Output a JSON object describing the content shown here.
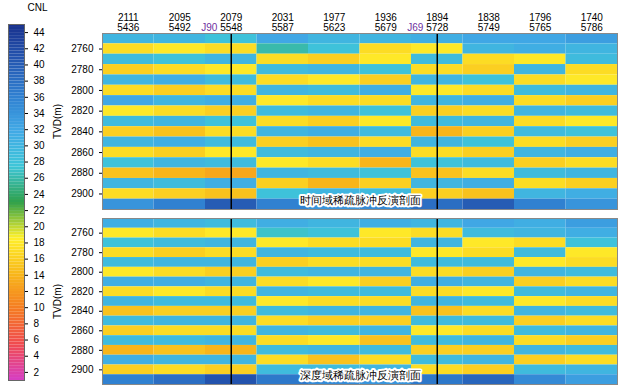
{
  "chart_data": {
    "type": "heatmap",
    "x_categories": [
      "2111\n5436",
      "2095\n5492",
      "2079\n5548",
      "2031\n5587",
      "1977\n5623",
      "1936\n5679",
      "1894\n5728",
      "1838\n5749",
      "1796\n5765",
      "1740\n5786"
    ],
    "ylabel": "TVD(m)",
    "ylim": [
      2745,
      2915
    ],
    "yticks": [
      2760,
      2780,
      2800,
      2820,
      2840,
      2860,
      2880,
      2900
    ],
    "y_edges": [
      2745,
      2755,
      2765,
      2775,
      2785,
      2795,
      2805,
      2815,
      2825,
      2835,
      2845,
      2855,
      2865,
      2875,
      2885,
      2895,
      2905,
      2915
    ],
    "color_bar": {
      "label": "CNL",
      "range": [
        1,
        45
      ],
      "ticks": [
        2,
        4,
        6,
        8,
        10,
        12,
        14,
        16,
        18,
        20,
        22,
        24,
        26,
        28,
        30,
        32,
        34,
        36,
        38,
        40,
        42,
        44
      ],
      "colors": [
        "#d63fc4",
        "#f04a50",
        "#f57b22",
        "#f8b81a",
        "#fff02a",
        "#2ea04a",
        "#3ec6d8",
        "#41a9e6",
        "#2f7fd0",
        "#2456b0",
        "#18308c"
      ]
    },
    "wells": [
      {
        "name": "J90",
        "x": "2079\n5548",
        "color": "#7030a0"
      },
      {
        "name": "J69",
        "x": "1894\n5728",
        "color": "#7030a0"
      }
    ],
    "panels": [
      {
        "title": "时间域稀疏脉冲反演剖面",
        "values": [
          [
            30,
            30,
            28,
            32,
            30,
            30,
            31,
            32,
            32,
            33
          ],
          [
            17,
            18,
            17,
            26,
            28,
            17,
            18,
            30,
            31,
            30
          ],
          [
            29,
            28,
            30,
            17,
            16,
            18,
            29,
            17,
            18,
            29
          ],
          [
            16,
            17,
            18,
            29,
            30,
            28,
            17,
            16,
            30,
            17
          ],
          [
            30,
            31,
            29,
            17,
            18,
            16,
            30,
            28,
            17,
            18
          ],
          [
            17,
            16,
            17,
            30,
            29,
            31,
            18,
            17,
            29,
            30
          ],
          [
            32,
            30,
            31,
            18,
            17,
            17,
            30,
            31,
            17,
            16
          ],
          [
            18,
            17,
            16,
            29,
            30,
            28,
            16,
            17,
            30,
            29
          ],
          [
            29,
            30,
            28,
            17,
            16,
            18,
            29,
            30,
            17,
            18
          ],
          [
            16,
            15,
            17,
            30,
            31,
            29,
            14,
            16,
            29,
            28
          ],
          [
            30,
            31,
            29,
            16,
            15,
            17,
            30,
            28,
            17,
            16
          ],
          [
            17,
            16,
            18,
            29,
            30,
            31,
            17,
            16,
            30,
            31
          ],
          [
            28,
            30,
            29,
            18,
            17,
            14,
            28,
            29,
            16,
            17
          ],
          [
            15,
            14,
            13,
            30,
            29,
            28,
            15,
            17,
            29,
            30
          ],
          [
            30,
            29,
            31,
            16,
            14,
            16,
            30,
            31,
            17,
            16
          ],
          [
            17,
            16,
            15,
            28,
            30,
            29,
            16,
            15,
            30,
            31
          ],
          [
            34,
            36,
            40,
            36,
            34,
            35,
            38,
            40,
            36,
            34
          ]
        ]
      },
      {
        "title": "深度域稀疏脉冲反演剖面",
        "values": [
          [
            31,
            30,
            29,
            31,
            30,
            31,
            30,
            32,
            31,
            33
          ],
          [
            18,
            17,
            18,
            27,
            28,
            18,
            17,
            29,
            30,
            31
          ],
          [
            28,
            29,
            30,
            18,
            17,
            17,
            30,
            18,
            17,
            28
          ],
          [
            17,
            16,
            17,
            30,
            29,
            29,
            18,
            17,
            29,
            18
          ],
          [
            29,
            30,
            30,
            16,
            17,
            17,
            29,
            29,
            18,
            17
          ],
          [
            18,
            17,
            16,
            29,
            30,
            30,
            17,
            16,
            30,
            29
          ],
          [
            31,
            31,
            30,
            17,
            18,
            16,
            31,
            30,
            16,
            17
          ],
          [
            17,
            18,
            17,
            30,
            29,
            29,
            17,
            18,
            29,
            30
          ],
          [
            30,
            29,
            29,
            18,
            17,
            17,
            30,
            29,
            18,
            17
          ],
          [
            15,
            16,
            16,
            29,
            30,
            30,
            15,
            17,
            30,
            29
          ],
          [
            29,
            30,
            30,
            17,
            16,
            16,
            29,
            29,
            16,
            17
          ],
          [
            16,
            17,
            17,
            30,
            29,
            30,
            18,
            17,
            29,
            30
          ],
          [
            29,
            29,
            30,
            17,
            18,
            15,
            29,
            30,
            17,
            16
          ],
          [
            14,
            15,
            14,
            29,
            30,
            29,
            16,
            16,
            30,
            29
          ],
          [
            31,
            30,
            30,
            17,
            15,
            17,
            29,
            30,
            16,
            17
          ],
          [
            16,
            17,
            16,
            29,
            29,
            30,
            17,
            16,
            29,
            30
          ],
          [
            36,
            38,
            41,
            37,
            35,
            34,
            37,
            39,
            35,
            33
          ]
        ]
      }
    ]
  }
}
